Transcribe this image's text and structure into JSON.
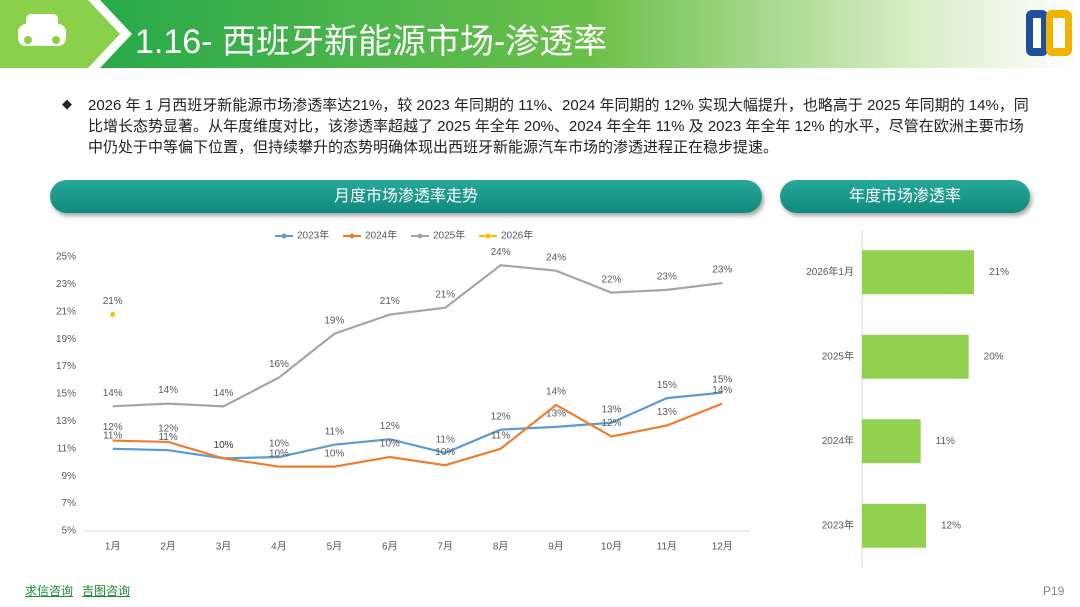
{
  "header": {
    "title": "1.16- 西班牙新能源市场-渗透率"
  },
  "summary": "2026 年 1 月西班牙新能源市场渗透率达21%，较 2023 年同期的 11%、2024 年同期的 12% 实现大幅提升，也略高于 2025 年同期的 14%，同比增长态势显著。从年度维度对比，该渗透率超越了 2025 年全年 20%、2024 年全年 11% 及 2023 年全年 12% 的水平，尽管在欧洲主要市场中仍处于中等偏下位置，但持续攀升的态势明确体现出西班牙新能源汽车市场的渗透进程正在稳步提速。",
  "tabs": [
    "月度市场渗透率走势",
    "年度市场渗透率"
  ],
  "footer": {
    "links": [
      "求信咨询",
      "吉图咨询"
    ],
    "page": "P19"
  },
  "chart_data": [
    {
      "type": "line",
      "categories": [
        "1月",
        "2月",
        "3月",
        "4月",
        "5月",
        "6月",
        "7月",
        "8月",
        "9月",
        "10月",
        "11月",
        "12月"
      ],
      "ylim": [
        5,
        25
      ],
      "yticks": [
        {
          "value": 5,
          "label": "5%"
        },
        {
          "value": 7,
          "label": "7%"
        },
        {
          "value": 9,
          "label": "9%"
        },
        {
          "value": 11,
          "label": "11%"
        },
        {
          "value": 13,
          "label": "13%"
        },
        {
          "value": 15,
          "label": "15%"
        },
        {
          "value": 17,
          "label": "17%"
        },
        {
          "value": 19,
          "label": "19%"
        },
        {
          "value": 21,
          "label": "21%"
        },
        {
          "value": 23,
          "label": "23%"
        },
        {
          "value": 25,
          "label": "25%"
        }
      ],
      "grid": false,
      "legend": "top",
      "series": [
        {
          "name": "2023年",
          "color": "#5b9bd5",
          "values": [
            11.0,
            10.9,
            10.3,
            10.4,
            11.3,
            11.7,
            10.7,
            12.4,
            12.6,
            12.9,
            14.7,
            15.1
          ],
          "value_labels": [
            "11%",
            "11%",
            "10%",
            "10%",
            "11%",
            "12%",
            "11%",
            "12%",
            "13%",
            "13%",
            "15%",
            "15%"
          ]
        },
        {
          "name": "2024年",
          "color": "#ed7d31",
          "values": [
            11.6,
            11.5,
            10.3,
            9.7,
            9.7,
            10.4,
            9.8,
            11.0,
            14.2,
            11.9,
            12.7,
            14.3
          ],
          "value_labels": [
            "12%",
            "12%",
            "10%",
            "10%",
            "10%",
            "10%",
            "10%",
            "11%",
            "14%",
            "12%",
            "13%",
            "14%"
          ]
        },
        {
          "name": "2025年",
          "color": "#a5a5a5",
          "values": [
            14.1,
            14.3,
            14.1,
            16.2,
            19.4,
            20.8,
            21.3,
            24.4,
            24.0,
            22.4,
            22.6,
            23.1
          ],
          "value_labels": [
            "14%",
            "14%",
            "14%",
            "16%",
            "19%",
            "21%",
            "21%",
            "24%",
            "24%",
            "22%",
            "23%",
            "23%"
          ]
        },
        {
          "name": "2026年",
          "color": "#ffc000",
          "values": [
            20.8,
            null,
            null,
            null,
            null,
            null,
            null,
            null,
            null,
            null,
            null,
            null
          ],
          "value_labels": [
            "21%",
            null,
            null,
            null,
            null,
            null,
            null,
            null,
            null,
            null,
            null,
            null
          ]
        }
      ]
    },
    {
      "type": "hbar",
      "color": "#92d050",
      "categories": [
        "2026年1月",
        "2025年",
        "2024年",
        "2023年"
      ],
      "values": [
        21,
        20,
        11,
        12
      ],
      "value_labels": [
        "21%",
        "20%",
        "11%",
        "12%"
      ]
    }
  ]
}
